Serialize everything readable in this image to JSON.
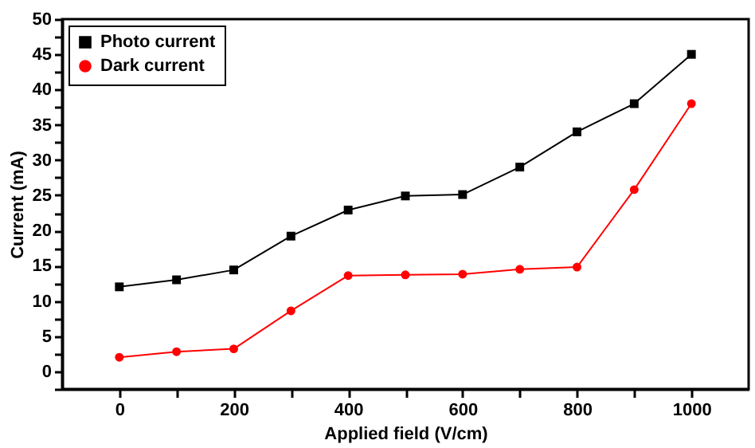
{
  "chart_data": {
    "type": "line",
    "xlabel": "Applied field (V/cm)",
    "ylabel": "Current (mA)",
    "x": [
      0,
      100,
      200,
      300,
      400,
      500,
      600,
      700,
      800,
      900,
      1000
    ],
    "series": [
      {
        "name": "Photo current",
        "color": "#000000",
        "marker": "square",
        "values": [
          12,
          13,
          14.4,
          19.2,
          22.9,
          24.9,
          25.1,
          29,
          34,
          38,
          45
        ]
      },
      {
        "name": "Dark current",
        "color": "#ff0000",
        "marker": "circle",
        "values": [
          2,
          2.8,
          3.2,
          8.6,
          13.6,
          13.7,
          13.8,
          14.5,
          14.8,
          25.8,
          38
        ]
      }
    ],
    "xlim": [
      -100,
      1100
    ],
    "ylim": [
      -2.5,
      50
    ],
    "xticks": [
      0,
      {
        "value": 100,
        "label": null
      },
      200,
      {
        "value": 300,
        "label": null
      },
      400,
      {
        "value": 500,
        "label": null
      },
      600,
      {
        "value": 700,
        "label": null
      },
      800,
      {
        "value": 900,
        "label": null
      },
      1000
    ],
    "yticks": [
      {
        "value": -2.5,
        "label": null
      },
      0,
      {
        "value": 2.5,
        "label": null
      },
      5,
      {
        "value": 7.5,
        "label": null
      },
      10,
      {
        "value": 12.5,
        "label": null
      },
      15,
      {
        "value": 17.5,
        "label": null
      },
      20,
      {
        "value": 22.5,
        "label": null
      },
      25,
      {
        "value": 27.5,
        "label": null
      },
      30,
      {
        "value": 32.5,
        "label": null
      },
      35,
      {
        "value": 37.5,
        "label": null
      },
      40,
      {
        "value": 42.5,
        "label": null
      },
      45,
      {
        "value": 47.5,
        "label": null
      },
      50
    ],
    "legend": "top left",
    "grid": false,
    "line_style": "solid"
  }
}
